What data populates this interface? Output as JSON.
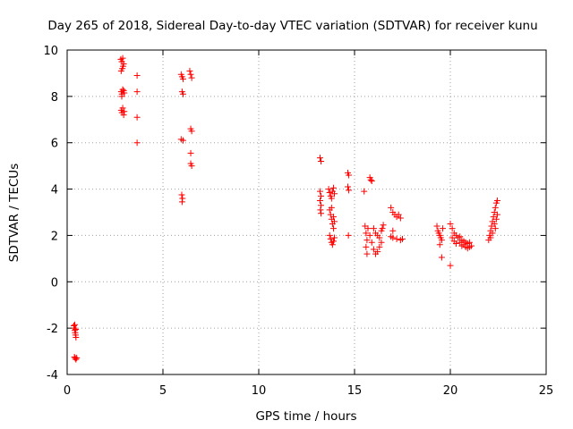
{
  "chart_data": {
    "type": "scatter",
    "title": "Day 265 of 2018, Sidereal Day-to-day VTEC variation (SDTVAR) for receiver kunu",
    "xlabel": "GPS time / hours",
    "ylabel": "SDTVAR / TECUs",
    "xlim": [
      0,
      25
    ],
    "ylim": [
      -4,
      10
    ],
    "xticks": [
      0,
      5,
      10,
      15,
      20,
      25
    ],
    "yticks": [
      -4,
      -2,
      0,
      2,
      4,
      6,
      8,
      10
    ],
    "xtick_labels": [
      "0",
      "5",
      "10",
      "15",
      "20",
      "25"
    ],
    "ytick_labels": [
      "-4",
      "-2",
      "0",
      "2",
      "4",
      "6",
      "8",
      "10"
    ],
    "grid": true,
    "marker": "plus",
    "color": "#ff0000",
    "series": [
      {
        "name": "SDTVAR",
        "points": [
          [
            0.35,
            -1.9
          ],
          [
            0.38,
            -2.0
          ],
          [
            0.4,
            -2.1
          ],
          [
            0.42,
            -2.2
          ],
          [
            0.44,
            -2.3
          ],
          [
            0.46,
            -2.4
          ],
          [
            0.4,
            -1.85
          ],
          [
            0.45,
            -2.05
          ],
          [
            0.38,
            -3.25
          ],
          [
            0.42,
            -3.3
          ],
          [
            0.46,
            -3.35
          ],
          [
            0.5,
            -3.28
          ],
          [
            2.8,
            9.6
          ],
          [
            2.85,
            9.5
          ],
          [
            2.9,
            9.65
          ],
          [
            2.95,
            9.4
          ],
          [
            2.88,
            9.2
          ],
          [
            2.82,
            9.1
          ],
          [
            2.92,
            9.3
          ],
          [
            2.82,
            8.2
          ],
          [
            2.86,
            8.1
          ],
          [
            2.9,
            8.3
          ],
          [
            2.95,
            8.25
          ],
          [
            2.85,
            8.0
          ],
          [
            2.98,
            8.15
          ],
          [
            2.82,
            7.4
          ],
          [
            2.86,
            7.3
          ],
          [
            2.9,
            7.5
          ],
          [
            2.95,
            7.2
          ],
          [
            2.98,
            7.35
          ],
          [
            3.65,
            8.9
          ],
          [
            3.65,
            8.2
          ],
          [
            3.65,
            7.1
          ],
          [
            3.65,
            6.0
          ],
          [
            5.95,
            8.95
          ],
          [
            6.0,
            8.85
          ],
          [
            6.05,
            8.75
          ],
          [
            6.0,
            8.2
          ],
          [
            6.05,
            8.1
          ],
          [
            5.95,
            6.15
          ],
          [
            6.05,
            6.1
          ],
          [
            5.98,
            3.75
          ],
          [
            6.02,
            3.6
          ],
          [
            6.0,
            3.45
          ],
          [
            6.4,
            9.1
          ],
          [
            6.45,
            8.95
          ],
          [
            6.5,
            8.8
          ],
          [
            6.45,
            6.6
          ],
          [
            6.5,
            6.5
          ],
          [
            6.45,
            5.55
          ],
          [
            6.45,
            5.1
          ],
          [
            6.5,
            5.0
          ],
          [
            13.2,
            5.35
          ],
          [
            13.25,
            5.2
          ],
          [
            13.2,
            3.9
          ],
          [
            13.25,
            3.7
          ],
          [
            13.2,
            3.5
          ],
          [
            13.25,
            3.3
          ],
          [
            13.22,
            3.1
          ],
          [
            13.25,
            2.95
          ],
          [
            13.65,
            4.0
          ],
          [
            13.7,
            3.85
          ],
          [
            13.75,
            3.7
          ],
          [
            13.8,
            3.6
          ],
          [
            13.85,
            3.9
          ],
          [
            13.9,
            4.05
          ],
          [
            13.95,
            3.8
          ],
          [
            13.7,
            3.1
          ],
          [
            13.75,
            2.9
          ],
          [
            13.8,
            2.7
          ],
          [
            13.85,
            2.5
          ],
          [
            13.9,
            2.3
          ],
          [
            13.95,
            2.6
          ],
          [
            13.8,
            3.2
          ],
          [
            13.9,
            2.8
          ],
          [
            13.7,
            2.0
          ],
          [
            13.75,
            1.85
          ],
          [
            13.8,
            1.7
          ],
          [
            13.85,
            1.6
          ],
          [
            13.9,
            1.75
          ],
          [
            13.95,
            1.9
          ],
          [
            14.65,
            4.7
          ],
          [
            14.7,
            4.6
          ],
          [
            14.65,
            4.1
          ],
          [
            14.7,
            3.95
          ],
          [
            14.68,
            2.0
          ],
          [
            15.5,
            3.9
          ],
          [
            15.55,
            2.4
          ],
          [
            15.6,
            2.1
          ],
          [
            15.65,
            1.8
          ],
          [
            15.6,
            1.5
          ],
          [
            15.65,
            1.2
          ],
          [
            15.7,
            2.3
          ],
          [
            15.8,
            4.5
          ],
          [
            15.85,
            4.4
          ],
          [
            15.9,
            4.35
          ],
          [
            15.8,
            2.0
          ],
          [
            15.9,
            1.7
          ],
          [
            16.0,
            1.4
          ],
          [
            16.1,
            1.2
          ],
          [
            16.2,
            1.3
          ],
          [
            16.3,
            1.5
          ],
          [
            16.4,
            1.7
          ],
          [
            16.0,
            2.3
          ],
          [
            16.1,
            2.1
          ],
          [
            16.2,
            2.0
          ],
          [
            16.3,
            1.9
          ],
          [
            16.4,
            2.2
          ],
          [
            16.5,
            2.45
          ],
          [
            16.45,
            2.3
          ],
          [
            16.9,
            3.2
          ],
          [
            17.0,
            3.0
          ],
          [
            17.1,
            2.9
          ],
          [
            17.2,
            2.8
          ],
          [
            17.3,
            2.9
          ],
          [
            17.4,
            2.75
          ],
          [
            16.9,
            1.95
          ],
          [
            17.0,
            1.9
          ],
          [
            17.2,
            1.85
          ],
          [
            17.4,
            1.8
          ],
          [
            17.5,
            1.85
          ],
          [
            17.0,
            2.2
          ],
          [
            19.3,
            2.4
          ],
          [
            19.35,
            2.2
          ],
          [
            19.4,
            2.1
          ],
          [
            19.45,
            2.0
          ],
          [
            19.5,
            1.9
          ],
          [
            19.55,
            1.8
          ],
          [
            19.6,
            2.3
          ],
          [
            19.45,
            1.6
          ],
          [
            19.55,
            1.05
          ],
          [
            20.0,
            0.7
          ],
          [
            20.0,
            2.5
          ],
          [
            20.1,
            2.3
          ],
          [
            20.2,
            2.1
          ],
          [
            20.3,
            2.0
          ],
          [
            20.1,
            1.9
          ],
          [
            20.2,
            1.75
          ],
          [
            20.3,
            1.65
          ],
          [
            20.4,
            1.9
          ],
          [
            20.5,
            1.7
          ],
          [
            20.6,
            1.55
          ],
          [
            20.7,
            1.6
          ],
          [
            20.8,
            1.5
          ],
          [
            20.9,
            1.45
          ],
          [
            21.0,
            1.5
          ],
          [
            21.1,
            1.55
          ],
          [
            20.5,
            1.95
          ],
          [
            20.6,
            1.8
          ],
          [
            20.7,
            1.75
          ],
          [
            20.8,
            1.7
          ],
          [
            20.9,
            1.65
          ],
          [
            21.0,
            1.7
          ],
          [
            22.0,
            1.8
          ],
          [
            22.05,
            2.0
          ],
          [
            22.1,
            2.2
          ],
          [
            22.15,
            2.4
          ],
          [
            22.2,
            2.6
          ],
          [
            22.25,
            2.8
          ],
          [
            22.3,
            3.0
          ],
          [
            22.35,
            3.2
          ],
          [
            22.4,
            3.4
          ],
          [
            22.45,
            3.5
          ],
          [
            22.1,
            1.9
          ],
          [
            22.2,
            2.1
          ],
          [
            22.3,
            2.5
          ],
          [
            22.4,
            2.7
          ],
          [
            22.45,
            2.9
          ],
          [
            22.35,
            2.3
          ]
        ]
      }
    ]
  }
}
